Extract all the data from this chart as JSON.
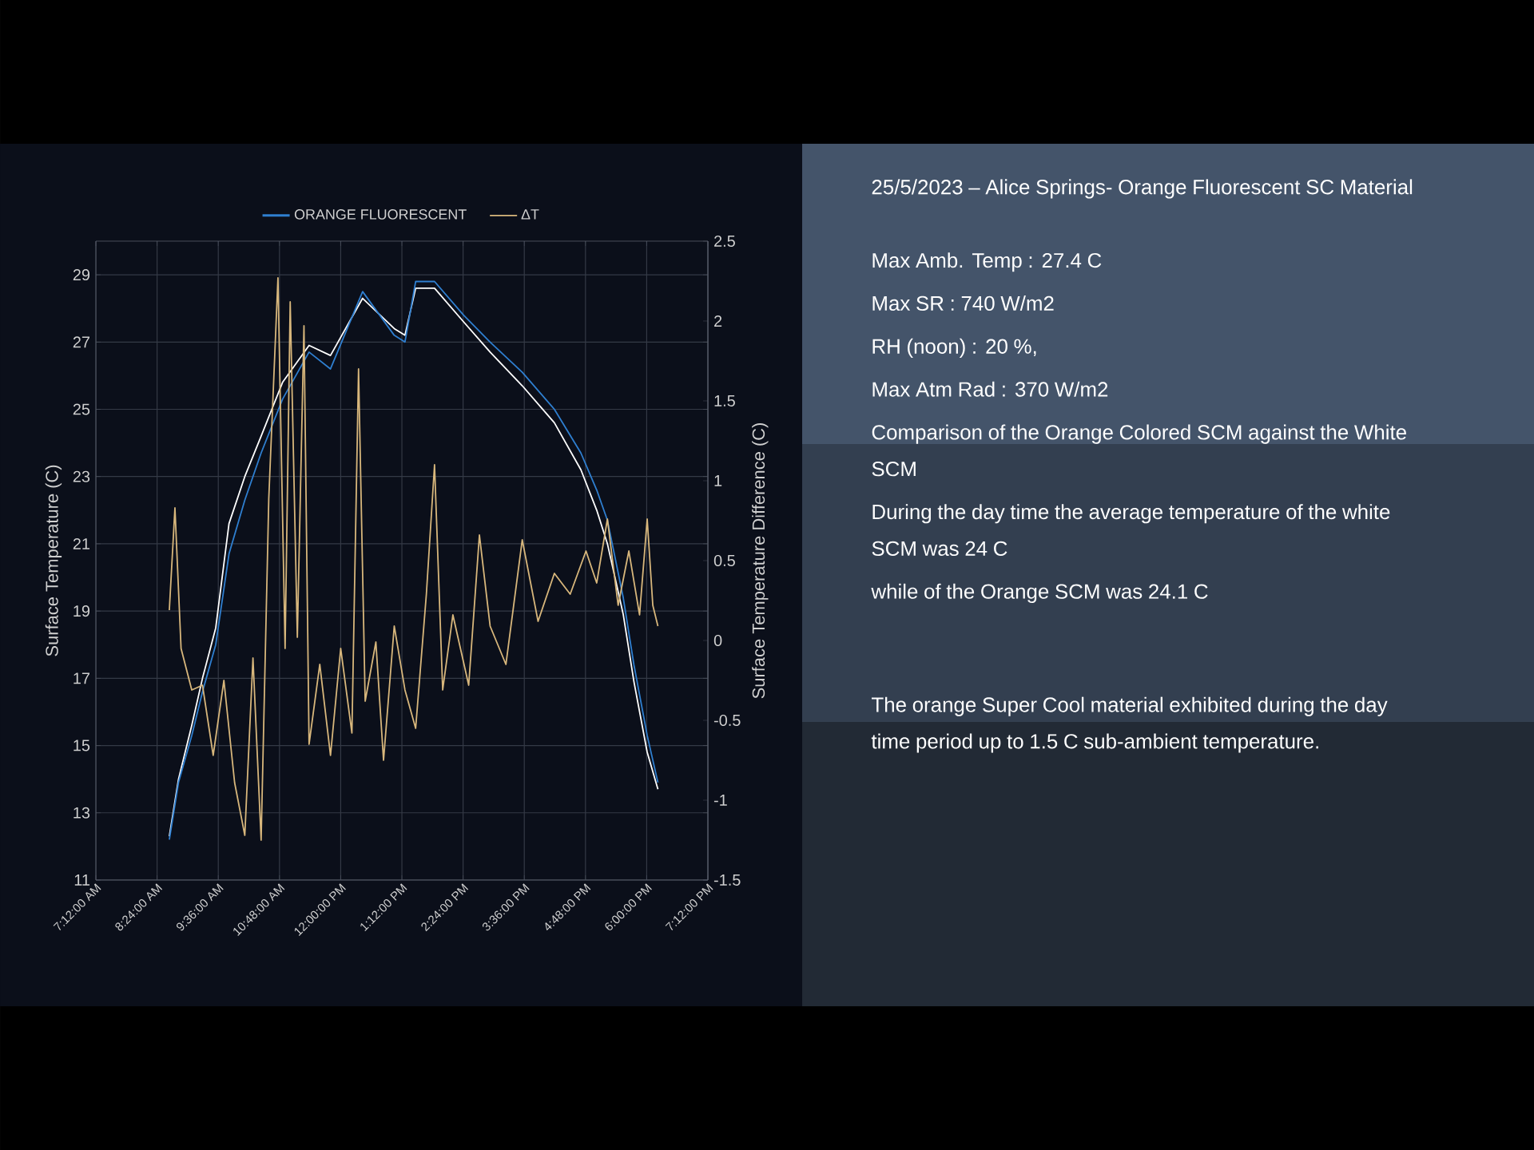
{
  "chart_data": [
    {
      "type": "line",
      "xlabel": null,
      "ylabel": "Surface Temperature (C)",
      "y2label": "Surface Temperature Difference (C)",
      "xlim": [
        7.2,
        19.2
      ],
      "xticks": [
        {
          "value": 7.2,
          "label": "7:12:00 AM"
        },
        {
          "value": 8.4,
          "label": "8:24:00 AM"
        },
        {
          "value": 9.6,
          "label": "9:36:00 AM"
        },
        {
          "value": 10.8,
          "label": "10:48:00 AM"
        },
        {
          "value": 12.0,
          "label": "12:00:00 PM"
        },
        {
          "value": 13.2,
          "label": "1:12:00 PM"
        },
        {
          "value": 14.4,
          "label": "2:24:00 PM"
        },
        {
          "value": 15.6,
          "label": "3:36:00 PM"
        },
        {
          "value": 16.8,
          "label": "4:48:00 PM"
        },
        {
          "value": 18.0,
          "label": "6:00:00 PM"
        },
        {
          "value": 19.2,
          "label": "7:12:00 PM"
        }
      ],
      "ylim": [
        11,
        30
      ],
      "yticks": [
        11,
        13,
        15,
        17,
        19,
        21,
        23,
        25,
        27,
        29
      ],
      "y2lim": [
        -1.5,
        2.5
      ],
      "y2ticks": [
        -1.5,
        -1,
        -0.5,
        0,
        0.5,
        1,
        1.5,
        2,
        2.5
      ],
      "grid": true,
      "legend": "top",
      "series": [
        {
          "color": "#ffffff",
          "x": [
            8.64,
            8.82,
            9.08,
            9.29,
            9.55,
            9.81,
            10.12,
            10.44,
            10.86,
            11.38,
            11.8,
            12.43,
            13.05,
            13.26,
            13.47,
            13.84,
            14.41,
            14.93,
            15.56,
            16.19,
            16.71,
            17.02,
            17.23,
            17.54,
            17.75,
            18.01,
            18.22
          ],
          "values": [
            12.3,
            14.0,
            15.6,
            17.0,
            18.5,
            21.6,
            23.0,
            24.2,
            25.8,
            26.9,
            26.6,
            28.3,
            27.4,
            27.2,
            28.6,
            28.6,
            27.6,
            26.7,
            25.7,
            24.6,
            23.2,
            22.0,
            21.0,
            18.9,
            16.9,
            14.8,
            13.7
          ]
        },
        {
          "name": "ORANGE FLUORESCENT",
          "color": "#2f7fd0",
          "x": [
            8.64,
            8.82,
            9.08,
            9.29,
            9.55,
            9.81,
            10.12,
            10.44,
            10.86,
            11.38,
            11.8,
            12.43,
            13.05,
            13.26,
            13.47,
            13.84,
            14.41,
            14.93,
            15.56,
            16.19,
            16.71,
            17.02,
            17.23,
            17.54,
            17.75,
            18.01,
            18.22
          ],
          "values": [
            12.2,
            13.9,
            15.3,
            16.6,
            18.0,
            20.7,
            22.3,
            23.7,
            25.3,
            26.7,
            26.2,
            28.5,
            27.2,
            27.0,
            28.8,
            28.8,
            27.8,
            27.0,
            26.1,
            25.0,
            23.7,
            22.6,
            21.7,
            19.4,
            17.4,
            15.3,
            13.9
          ]
        },
        {
          "name": "ΔT",
          "axis": "y2",
          "color": "#d8b77c",
          "x": [
            8.64,
            8.75,
            8.87,
            9.08,
            9.29,
            9.5,
            9.71,
            9.92,
            10.12,
            10.28,
            10.44,
            10.59,
            10.77,
            10.91,
            11.01,
            11.15,
            11.28,
            11.38,
            11.59,
            11.8,
            12.0,
            12.22,
            12.35,
            12.48,
            12.69,
            12.84,
            13.05,
            13.26,
            13.47,
            13.68,
            13.84,
            14.0,
            14.2,
            14.51,
            14.72,
            14.93,
            15.24,
            15.56,
            15.87,
            16.19,
            16.5,
            16.81,
            17.02,
            17.23,
            17.44,
            17.65,
            17.86,
            18.01,
            18.12,
            18.22
          ],
          "values": [
            0.19,
            0.83,
            -0.05,
            -0.31,
            -0.28,
            -0.72,
            -0.25,
            -0.89,
            -1.22,
            -0.11,
            -1.25,
            0.89,
            2.27,
            -0.05,
            2.12,
            0.02,
            1.97,
            -0.65,
            -0.15,
            -0.72,
            -0.05,
            -0.58,
            1.7,
            -0.38,
            -0.01,
            -0.75,
            0.09,
            -0.31,
            -0.55,
            0.29,
            1.1,
            -0.31,
            0.16,
            -0.28,
            0.66,
            0.09,
            -0.15,
            0.63,
            0.12,
            0.42,
            0.29,
            0.56,
            0.36,
            0.76,
            0.22,
            0.56,
            0.16,
            0.76,
            0.22,
            0.09
          ]
        }
      ]
    },
    {
      "type": "other",
      "title": "25/5/2023 – Alice Springs- Orange Fluorescent SC Material",
      "annotations": [
        "Max Amb. Temp : 27.4 C",
        "Max SR : 740 W/m2",
        "RH (noon) : 20 %,",
        "Max Atm Rad : 370 W/m2",
        "Comparison of the Orange Colored SCM against the White SCM",
        "During the day time the average temperature of the white SCM was  24 C",
        "while of the Orange SCM was 24.1 C",
        "The orange Super Cool material exhibited during the day time period up to 1.5 C sub-ambient temperature."
      ]
    }
  ]
}
